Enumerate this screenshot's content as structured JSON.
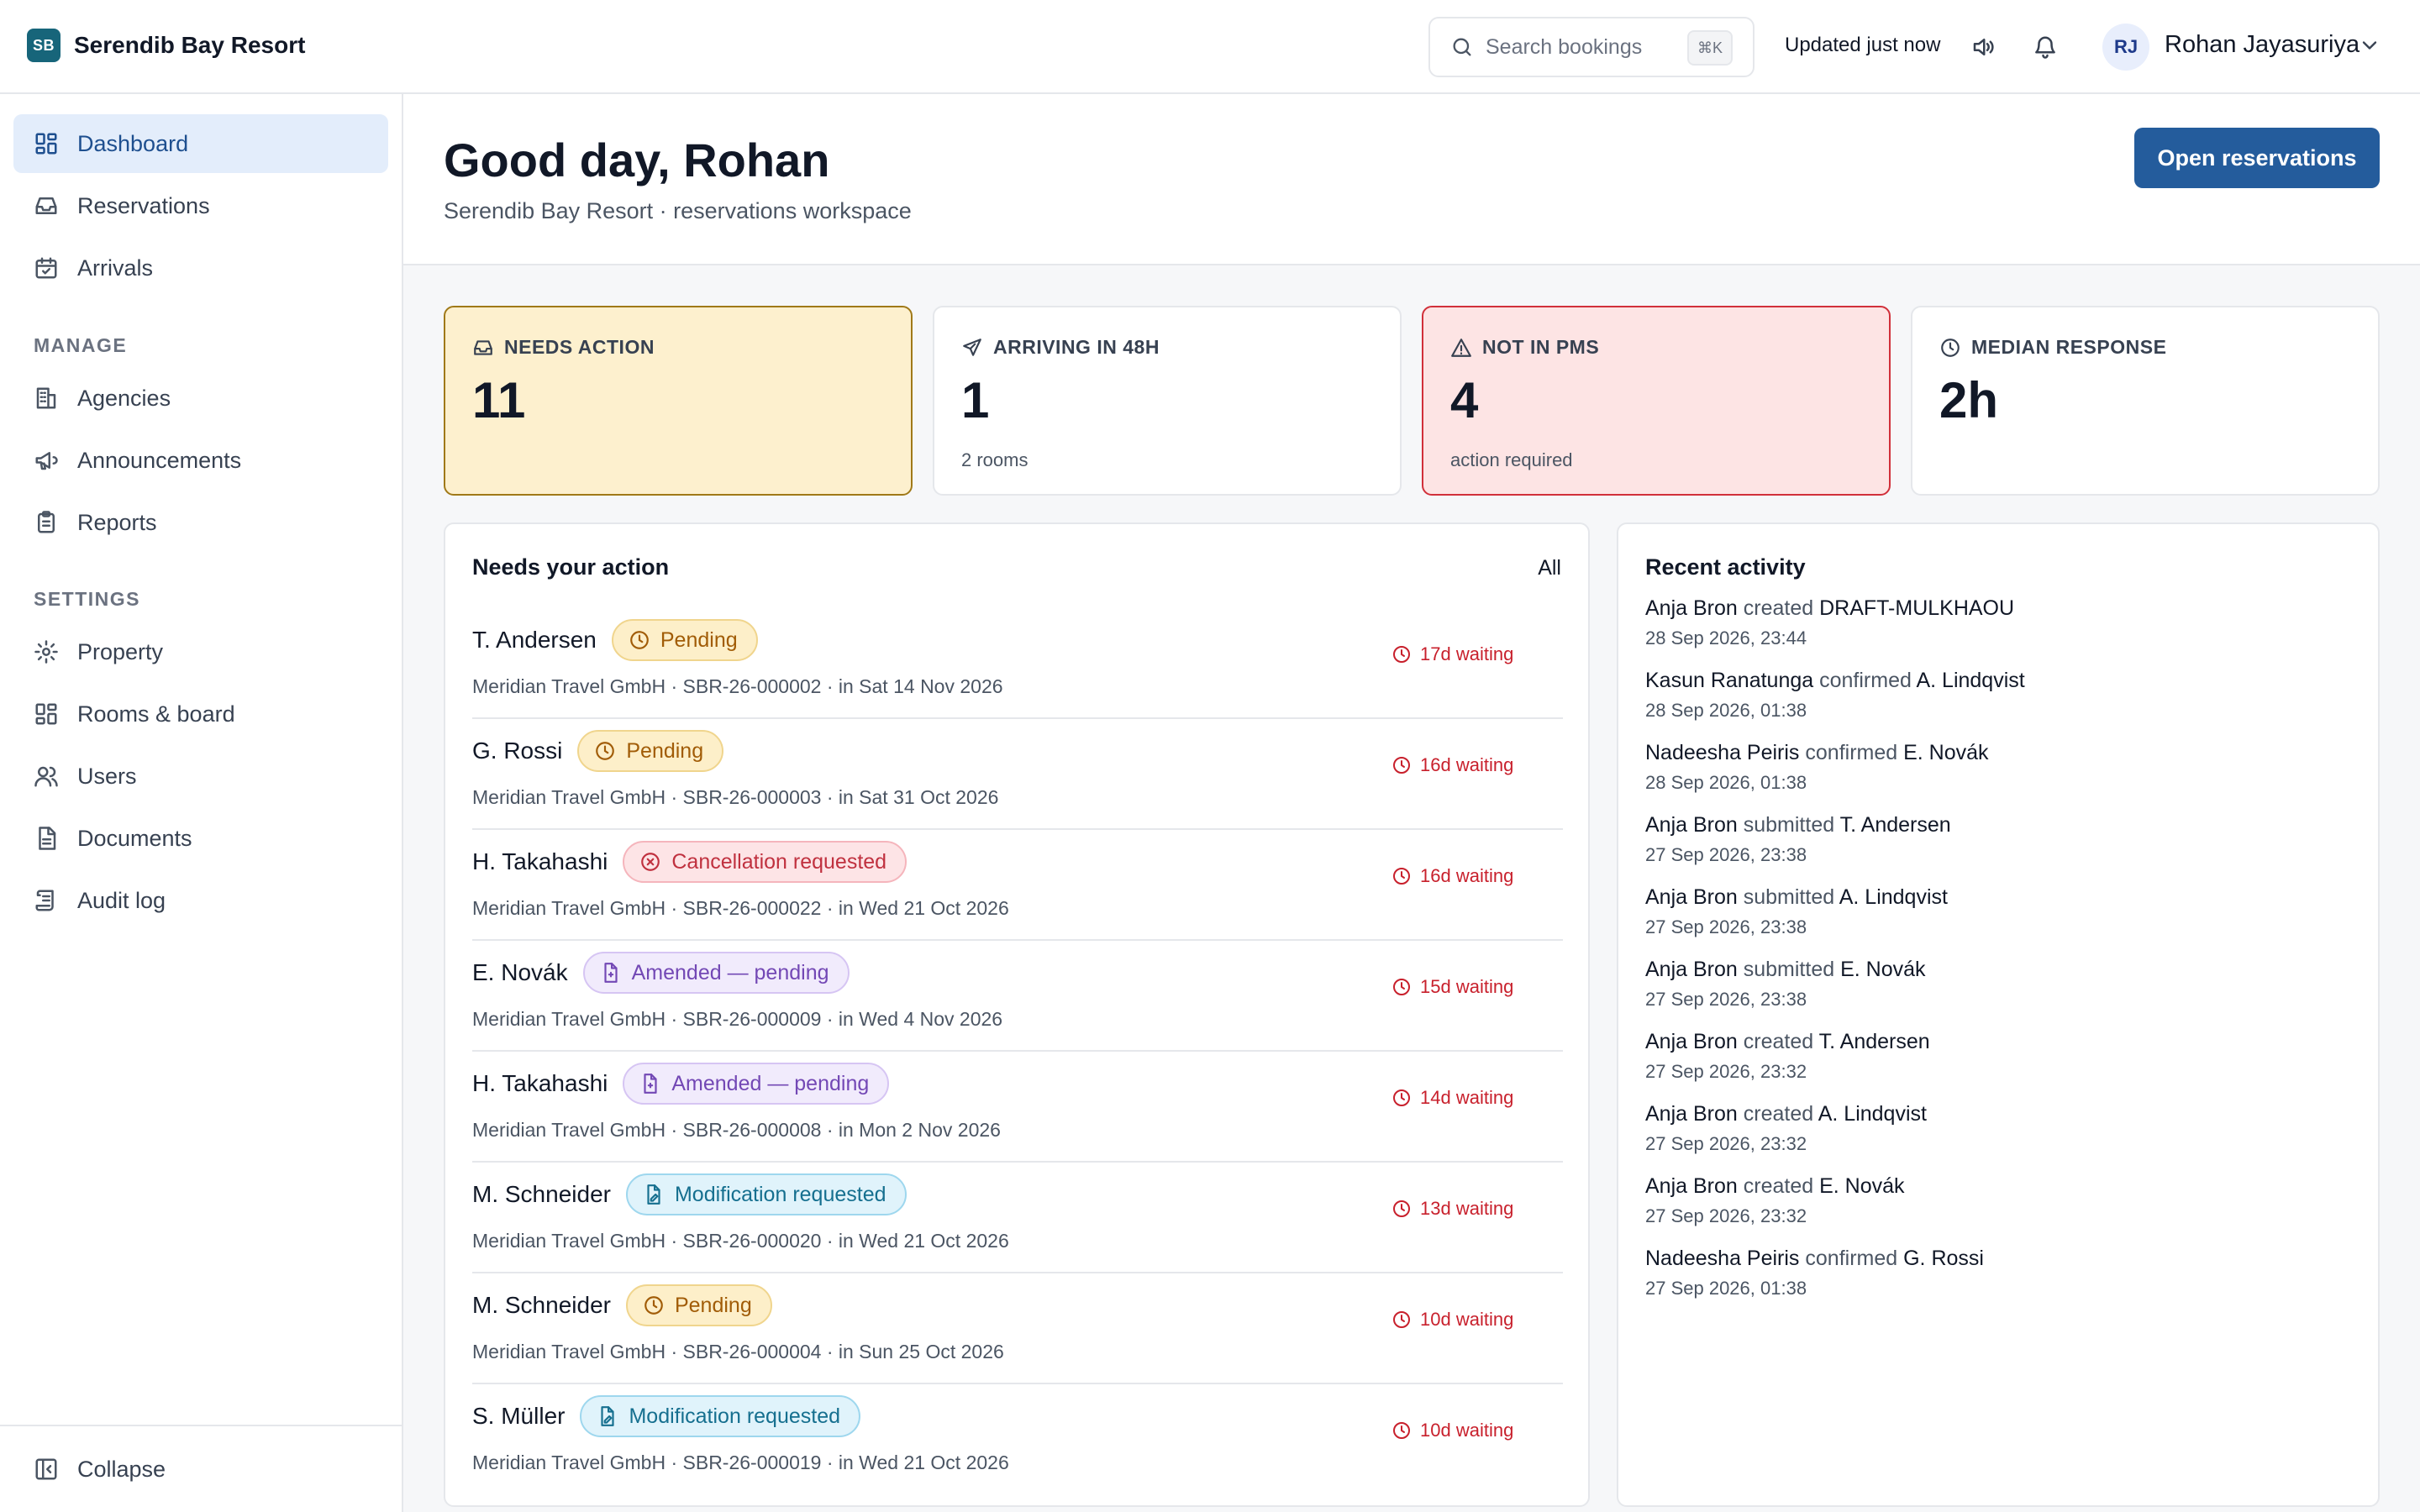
{
  "app": {
    "brand_initials": "SB",
    "brand_name": "Serendib Bay Resort"
  },
  "topbar": {
    "search_placeholder": "Search bookings",
    "search_shortcut": "⌘K",
    "updated_text": "Updated just now",
    "user_initials": "RJ",
    "user_name": "Rohan Jayasuriya"
  },
  "sidebar": {
    "items": [
      {
        "label": "Dashboard",
        "icon": "dashboard-icon",
        "active": true
      },
      {
        "label": "Reservations",
        "icon": "inbox-icon"
      },
      {
        "label": "Arrivals",
        "icon": "calendar-check-icon"
      }
    ],
    "manage_heading": "MANAGE",
    "manage_items": [
      {
        "label": "Agencies",
        "icon": "building-icon"
      },
      {
        "label": "Announcements",
        "icon": "megaphone-icon"
      },
      {
        "label": "Reports",
        "icon": "clipboard-icon"
      }
    ],
    "settings_heading": "SETTINGS",
    "settings_items": [
      {
        "label": "Property",
        "icon": "gear-icon"
      },
      {
        "label": "Rooms & board",
        "icon": "grid-icon"
      },
      {
        "label": "Users",
        "icon": "users-icon"
      },
      {
        "label": "Documents",
        "icon": "document-icon"
      },
      {
        "label": "Audit log",
        "icon": "scroll-icon"
      }
    ],
    "collapse_label": "Collapse"
  },
  "header": {
    "greeting": "Good day, Rohan",
    "subtitle": "Serendib Bay Resort · reservations workspace",
    "primary_button": "Open reservations"
  },
  "stats": [
    {
      "label": "NEEDS ACTION",
      "value": "11",
      "sub": "",
      "icon": "inbox-icon",
      "tone": "warn"
    },
    {
      "label": "ARRIVING IN 48H",
      "value": "1",
      "sub": "2 rooms",
      "icon": "plane-icon",
      "tone": "neutral"
    },
    {
      "label": "NOT IN PMS",
      "value": "4",
      "sub": "action required",
      "icon": "alert-triangle-icon",
      "tone": "danger"
    },
    {
      "label": "MEDIAN RESPONSE",
      "value": "2h",
      "sub": "",
      "icon": "clock-icon",
      "tone": "neutral"
    }
  ],
  "needs_action": {
    "title": "Needs your action",
    "link": "All",
    "rows": [
      {
        "guest": "T. Andersen",
        "status": "Pending",
        "kind": "pending",
        "meta": "Meridian Travel GmbH · SBR-26-000002 · in Sat 14 Nov 2026",
        "waiting": "17d waiting"
      },
      {
        "guest": "G. Rossi",
        "status": "Pending",
        "kind": "pending",
        "meta": "Meridian Travel GmbH · SBR-26-000003 · in Sat 31 Oct 2026",
        "waiting": "16d waiting"
      },
      {
        "guest": "H. Takahashi",
        "status": "Cancellation requested",
        "kind": "cancel",
        "meta": "Meridian Travel GmbH · SBR-26-000022 · in Wed 21 Oct 2026",
        "waiting": "16d waiting"
      },
      {
        "guest": "E. Novák",
        "status": "Amended — pending",
        "kind": "amended",
        "meta": "Meridian Travel GmbH · SBR-26-000009 · in Wed 4 Nov 2026",
        "waiting": "15d waiting"
      },
      {
        "guest": "H. Takahashi",
        "status": "Amended — pending",
        "kind": "amended",
        "meta": "Meridian Travel GmbH · SBR-26-000008 · in Mon 2 Nov 2026",
        "waiting": "14d waiting"
      },
      {
        "guest": "M. Schneider",
        "status": "Modification requested",
        "kind": "modify",
        "meta": "Meridian Travel GmbH · SBR-26-000020 · in Wed 21 Oct 2026",
        "waiting": "13d waiting"
      },
      {
        "guest": "M. Schneider",
        "status": "Pending",
        "kind": "pending",
        "meta": "Meridian Travel GmbH · SBR-26-000004 · in Sun 25 Oct 2026",
        "waiting": "10d waiting"
      },
      {
        "guest": "S. Müller",
        "status": "Modification requested",
        "kind": "modify",
        "meta": "Meridian Travel GmbH · SBR-26-000019 · in Wed 21 Oct 2026",
        "waiting": "10d waiting"
      }
    ]
  },
  "activity": {
    "title": "Recent activity",
    "items": [
      {
        "actor": "Anja Bron",
        "verb": "created",
        "target": "DRAFT-MULKHAOU",
        "time": "28 Sep 2026, 23:44"
      },
      {
        "actor": "Kasun Ranatunga",
        "verb": "confirmed",
        "target": "A. Lindqvist",
        "time": "28 Sep 2026, 01:38"
      },
      {
        "actor": "Nadeesha Peiris",
        "verb": "confirmed",
        "target": "E. Novák",
        "time": "28 Sep 2026, 01:38"
      },
      {
        "actor": "Anja Bron",
        "verb": "submitted",
        "target": "T. Andersen",
        "time": "27 Sep 2026, 23:38"
      },
      {
        "actor": "Anja Bron",
        "verb": "submitted",
        "target": "A. Lindqvist",
        "time": "27 Sep 2026, 23:38"
      },
      {
        "actor": "Anja Bron",
        "verb": "submitted",
        "target": "E. Novák",
        "time": "27 Sep 2026, 23:38"
      },
      {
        "actor": "Anja Bron",
        "verb": "created",
        "target": "T. Andersen",
        "time": "27 Sep 2026, 23:32"
      },
      {
        "actor": "Anja Bron",
        "verb": "created",
        "target": "A. Lindqvist",
        "time": "27 Sep 2026, 23:32"
      },
      {
        "actor": "Anja Bron",
        "verb": "created",
        "target": "E. Novák",
        "time": "27 Sep 2026, 23:32"
      },
      {
        "actor": "Nadeesha Peiris",
        "verb": "confirmed",
        "target": "G. Rossi",
        "time": "27 Sep 2026, 01:38"
      }
    ]
  },
  "colors": {
    "brand": "#17657a",
    "primary": "#245c9c",
    "warn_bg": "#fdf0ce",
    "danger_bg": "#fde4e4",
    "waiting": "#c8202c"
  }
}
